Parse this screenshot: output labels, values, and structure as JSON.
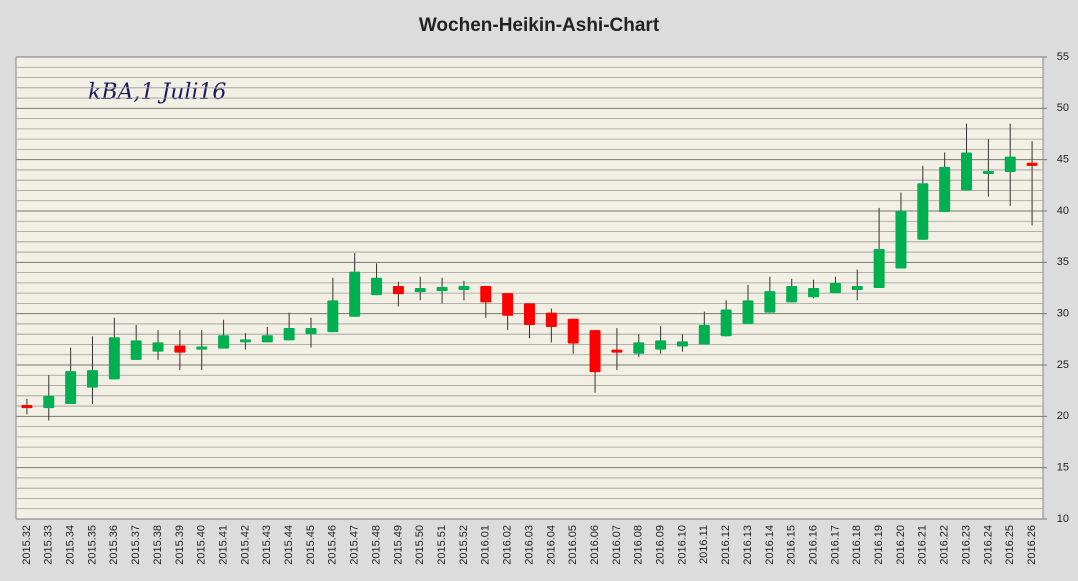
{
  "chart_data": {
    "type": "candlestick",
    "title": "Wochen-Heikin-Ashi-Chart",
    "annotation": "kBA,1 Juli16",
    "categories": [
      "2015.32",
      "2015.33",
      "2015.34",
      "2015.35",
      "2015.36",
      "2015.37",
      "2015.38",
      "2015.39",
      "2015.40",
      "2015.41",
      "2015.42",
      "2015.43",
      "2015.44",
      "2015.45",
      "2015.46",
      "2015.47",
      "2015.48",
      "2015.49",
      "2015.50",
      "2015.51",
      "2015.52",
      "2016.01",
      "2016.02",
      "2016.03",
      "2016.04",
      "2016.05",
      "2016.06",
      "2016.07",
      "2016.08",
      "2016.09",
      "2016.10",
      "2016.11",
      "2016.12",
      "2016.13",
      "2016.14",
      "2016.15",
      "2016.16",
      "2016.17",
      "2016.18",
      "2016.19",
      "2016.20",
      "2016.21",
      "2016.22",
      "2016.23",
      "2016.24",
      "2016.25",
      "2016.26"
    ],
    "open": [
      21.1,
      20.8,
      21.2,
      22.8,
      23.6,
      25.5,
      26.3,
      26.9,
      26.5,
      26.6,
      27.2,
      27.2,
      27.4,
      28.0,
      28.2,
      29.7,
      31.8,
      32.7,
      32.1,
      32.2,
      32.3,
      32.7,
      32.0,
      31.0,
      30.1,
      29.5,
      28.4,
      26.5,
      26.1,
      26.5,
      26.8,
      27.0,
      27.8,
      29.0,
      30.1,
      31.1,
      31.6,
      32.0,
      32.3,
      32.5,
      34.4,
      37.2,
      39.9,
      42.0,
      43.6,
      43.8,
      44.7
    ],
    "high": [
      21.7,
      24.0,
      26.7,
      27.8,
      29.6,
      28.9,
      28.4,
      28.4,
      28.4,
      29.4,
      28.1,
      28.7,
      30.1,
      29.6,
      33.5,
      35.9,
      34.9,
      33.1,
      33.6,
      33.5,
      33.2,
      32.7,
      32.0,
      31.0,
      30.5,
      29.5,
      28.4,
      28.6,
      28.0,
      28.8,
      28.0,
      30.2,
      31.3,
      32.8,
      33.6,
      33.4,
      33.3,
      33.6,
      34.3,
      40.3,
      41.8,
      44.4,
      45.7,
      48.5,
      47.0,
      48.5,
      46.8
    ],
    "low": [
      20.2,
      19.6,
      21.2,
      21.2,
      23.6,
      25.5,
      25.5,
      24.5,
      24.5,
      26.6,
      26.5,
      27.2,
      27.4,
      26.7,
      28.2,
      29.7,
      31.8,
      30.7,
      31.3,
      31.0,
      31.3,
      29.6,
      28.4,
      27.6,
      27.2,
      26.1,
      22.3,
      24.5,
      25.8,
      26.1,
      26.3,
      27.0,
      27.8,
      29.0,
      30.1,
      31.1,
      31.5,
      32.0,
      31.3,
      32.5,
      34.4,
      37.2,
      39.9,
      42.0,
      41.4,
      40.5,
      38.6
    ],
    "close": [
      20.8,
      22.0,
      24.4,
      24.5,
      27.7,
      27.4,
      27.2,
      26.2,
      26.8,
      27.9,
      27.5,
      27.9,
      28.6,
      28.6,
      31.3,
      34.1,
      33.5,
      31.9,
      32.5,
      32.6,
      32.7,
      31.1,
      29.8,
      28.9,
      28.7,
      27.1,
      24.3,
      26.2,
      27.2,
      27.4,
      27.3,
      28.9,
      30.4,
      31.3,
      32.2,
      32.7,
      32.5,
      33.0,
      32.7,
      36.3,
      40.0,
      42.7,
      44.3,
      45.7,
      43.9,
      45.3,
      44.4
    ],
    "up_color": "#00b050",
    "down_color": "#ff0000",
    "ylim": [
      10,
      55
    ],
    "yticks": [
      10,
      15,
      20,
      25,
      30,
      35,
      40,
      45,
      50,
      55
    ],
    "minor_yticks": [
      11,
      12,
      13,
      14,
      16,
      17,
      18,
      19,
      21,
      22,
      23,
      24,
      26,
      27,
      28,
      29,
      31,
      32,
      33,
      34,
      36,
      37,
      38,
      39,
      41,
      42,
      43,
      44,
      46,
      47,
      48,
      49,
      51,
      52,
      53,
      54
    ],
    "grid": true,
    "y_axis_side": "right"
  }
}
